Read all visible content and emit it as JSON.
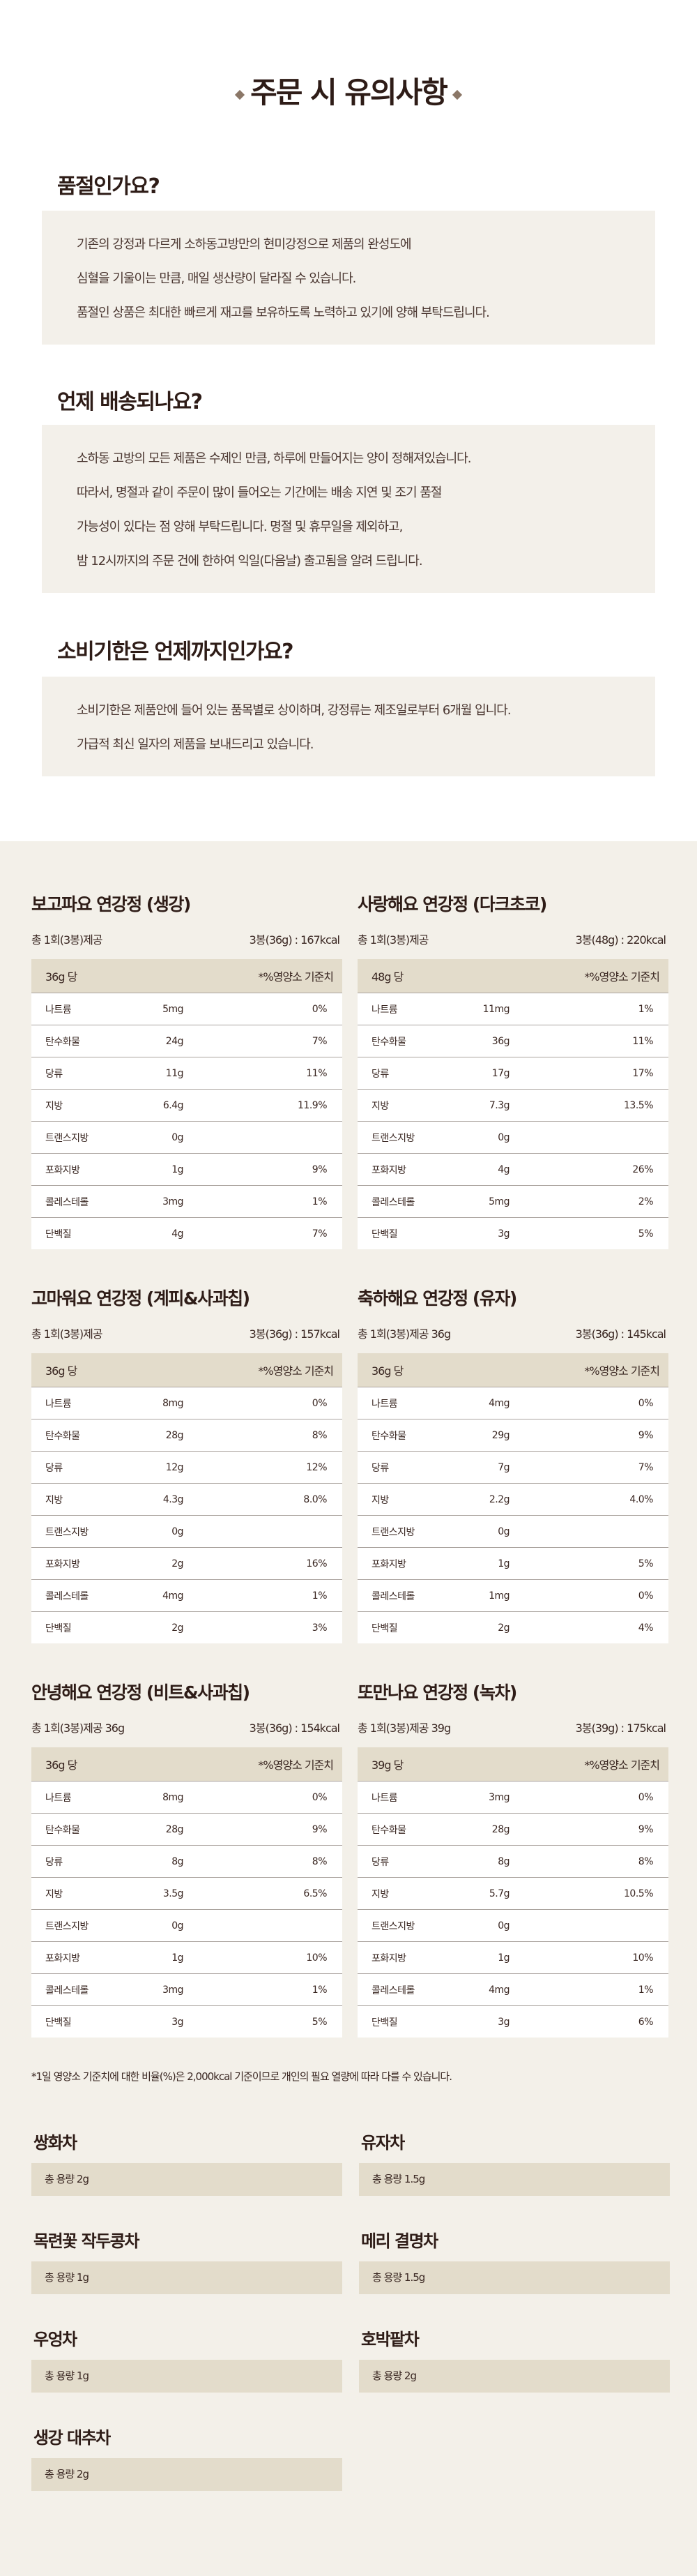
{
  "header": {
    "title": "주문 시 유의사항"
  },
  "faq": [
    {
      "question": "품절인가요?",
      "lines": [
        "기존의 강정과 다르게 소하동고방만의 현미강정으로 제품의 완성도에",
        "심혈을 기울이는 만큼, 매일 생산량이 달라질 수 있습니다.",
        "품절인 상품은 최대한 빠르게 재고를 보유하도록 노력하고 있기에 양해 부탁드립니다."
      ]
    },
    {
      "question": "언제 배송되나요?",
      "lines": [
        "소하동 고방의 모든 제품은 수제인 만큼, 하루에 만들어지는 양이 정해져있습니다.",
        "따라서, 명절과 같이 주문이 많이 들어오는 기간에는 배송 지연 및 조기 품절",
        "가능성이 있다는 점 양해 부탁드립니다. 명절 및 휴무일을 제외하고,",
        "밤 12시까지의 주문 건에 한하여 익일(다음날) 출고됨을 알려 드립니다."
      ]
    },
    {
      "question": "소비기한은 언제까지인가요?",
      "lines": [
        "소비기한은 제품안에 들어 있는 품목별로 상이하며, 강정류는 제조일로부터 6개월 입니다.",
        "가급적 최신 일자의 제품을 보내드리고 있습니다."
      ]
    }
  ],
  "products": [
    {
      "name": "보고파요 연강정 (생강)",
      "serving": "총 1회(3봉)제공",
      "calories": "3봉(36g) : 167kcal",
      "per": "36g 당",
      "dv_label": "*%영양소 기준치",
      "rows": [
        [
          "나트륨",
          "5mg",
          "0%"
        ],
        [
          "탄수화물",
          "24g",
          "7%"
        ],
        [
          "당류",
          "11g",
          "11%"
        ],
        [
          "지방",
          "6.4g",
          "11.9%"
        ],
        [
          "트랜스지방",
          "0g",
          ""
        ],
        [
          "포화지방",
          "1g",
          "9%"
        ],
        [
          "콜레스테롤",
          "3mg",
          "1%"
        ],
        [
          "단백질",
          "4g",
          "7%"
        ]
      ]
    },
    {
      "name": "사랑해요 연강정 (다크초코)",
      "serving": "총 1회(3봉)제공",
      "calories": "3봉(48g) : 220kcal",
      "per": "48g 당",
      "dv_label": "*%영양소 기준치",
      "rows": [
        [
          "나트륨",
          "11mg",
          "1%"
        ],
        [
          "탄수화물",
          "36g",
          "11%"
        ],
        [
          "당류",
          "17g",
          "17%"
        ],
        [
          "지방",
          "7.3g",
          "13.5%"
        ],
        [
          "트랜스지방",
          "0g",
          ""
        ],
        [
          "포화지방",
          "4g",
          "26%"
        ],
        [
          "콜레스테롤",
          "5mg",
          "2%"
        ],
        [
          "단백질",
          "3g",
          "5%"
        ]
      ]
    },
    {
      "name": "고마워요 연강정 (계피&사과칩)",
      "serving": "총 1회(3봉)제공",
      "calories": "3봉(36g) : 157kcal",
      "per": "36g 당",
      "dv_label": "*%영양소 기준치",
      "rows": [
        [
          "나트륨",
          "8mg",
          "0%"
        ],
        [
          "탄수화물",
          "28g",
          "8%"
        ],
        [
          "당류",
          "12g",
          "12%"
        ],
        [
          "지방",
          "4.3g",
          "8.0%"
        ],
        [
          "트랜스지방",
          "0g",
          ""
        ],
        [
          "포화지방",
          "2g",
          "16%"
        ],
        [
          "콜레스테롤",
          "4mg",
          "1%"
        ],
        [
          "단백질",
          "2g",
          "3%"
        ]
      ]
    },
    {
      "name": "축하해요 연강정 (유자)",
      "serving": "총 1회(3봉)제공 36g",
      "calories": "3봉(36g) : 145kcal",
      "per": "36g 당",
      "dv_label": "*%영양소 기준치",
      "rows": [
        [
          "나트륨",
          "4mg",
          "0%"
        ],
        [
          "탄수화물",
          "29g",
          "9%"
        ],
        [
          "당류",
          "7g",
          "7%"
        ],
        [
          "지방",
          "2.2g",
          "4.0%"
        ],
        [
          "트랜스지방",
          "0g",
          ""
        ],
        [
          "포화지방",
          "1g",
          "5%"
        ],
        [
          "콜레스테롤",
          "1mg",
          "0%"
        ],
        [
          "단백질",
          "2g",
          "4%"
        ]
      ]
    },
    {
      "name": "안녕해요 연강정 (비트&사과칩)",
      "serving": "총 1회(3봉)제공 36g",
      "calories": "3봉(36g) : 154kcal",
      "per": "36g 당",
      "dv_label": "*%영양소 기준치",
      "rows": [
        [
          "나트륨",
          "8mg",
          "0%"
        ],
        [
          "탄수화물",
          "28g",
          "9%"
        ],
        [
          "당류",
          "8g",
          "8%"
        ],
        [
          "지방",
          "3.5g",
          "6.5%"
        ],
        [
          "트랜스지방",
          "0g",
          ""
        ],
        [
          "포화지방",
          "1g",
          "10%"
        ],
        [
          "콜레스테롤",
          "3mg",
          "1%"
        ],
        [
          "단백질",
          "3g",
          "5%"
        ]
      ]
    },
    {
      "name": "또만나요 연강정 (녹차)",
      "serving": "총 1회(3봉)제공 39g",
      "calories": "3봉(39g) : 175kcal",
      "per": "39g 당",
      "dv_label": "*%영양소 기준치",
      "rows": [
        [
          "나트륨",
          "3mg",
          "0%"
        ],
        [
          "탄수화물",
          "28g",
          "9%"
        ],
        [
          "당류",
          "8g",
          "8%"
        ],
        [
          "지방",
          "5.7g",
          "10.5%"
        ],
        [
          "트랜스지방",
          "0g",
          ""
        ],
        [
          "포화지방",
          "1g",
          "10%"
        ],
        [
          "콜레스테롤",
          "4mg",
          "1%"
        ],
        [
          "단백질",
          "3g",
          "6%"
        ]
      ]
    }
  ],
  "footnote": "*1일 영양소 기준치에 대한 비율(%)은 2,000kcal 기준이므로 개인의 필요 열량에 따라 다를 수 있습니다.",
  "teas": [
    {
      "name": "쌍화차",
      "amount": "총 용량 2g"
    },
    {
      "name": "유자차",
      "amount": "총 용량 1.5g"
    },
    {
      "name": "목련꽃 작두콩차",
      "amount": "총 용량 1g"
    },
    {
      "name": "메리 결명차",
      "amount": "총 용량 1.5g"
    },
    {
      "name": "우엉차",
      "amount": "총 용량 1g"
    },
    {
      "name": "호박팥차",
      "amount": "총 용량 2g"
    },
    {
      "name": "생강 대추차",
      "amount": "총 용량 2g"
    }
  ]
}
